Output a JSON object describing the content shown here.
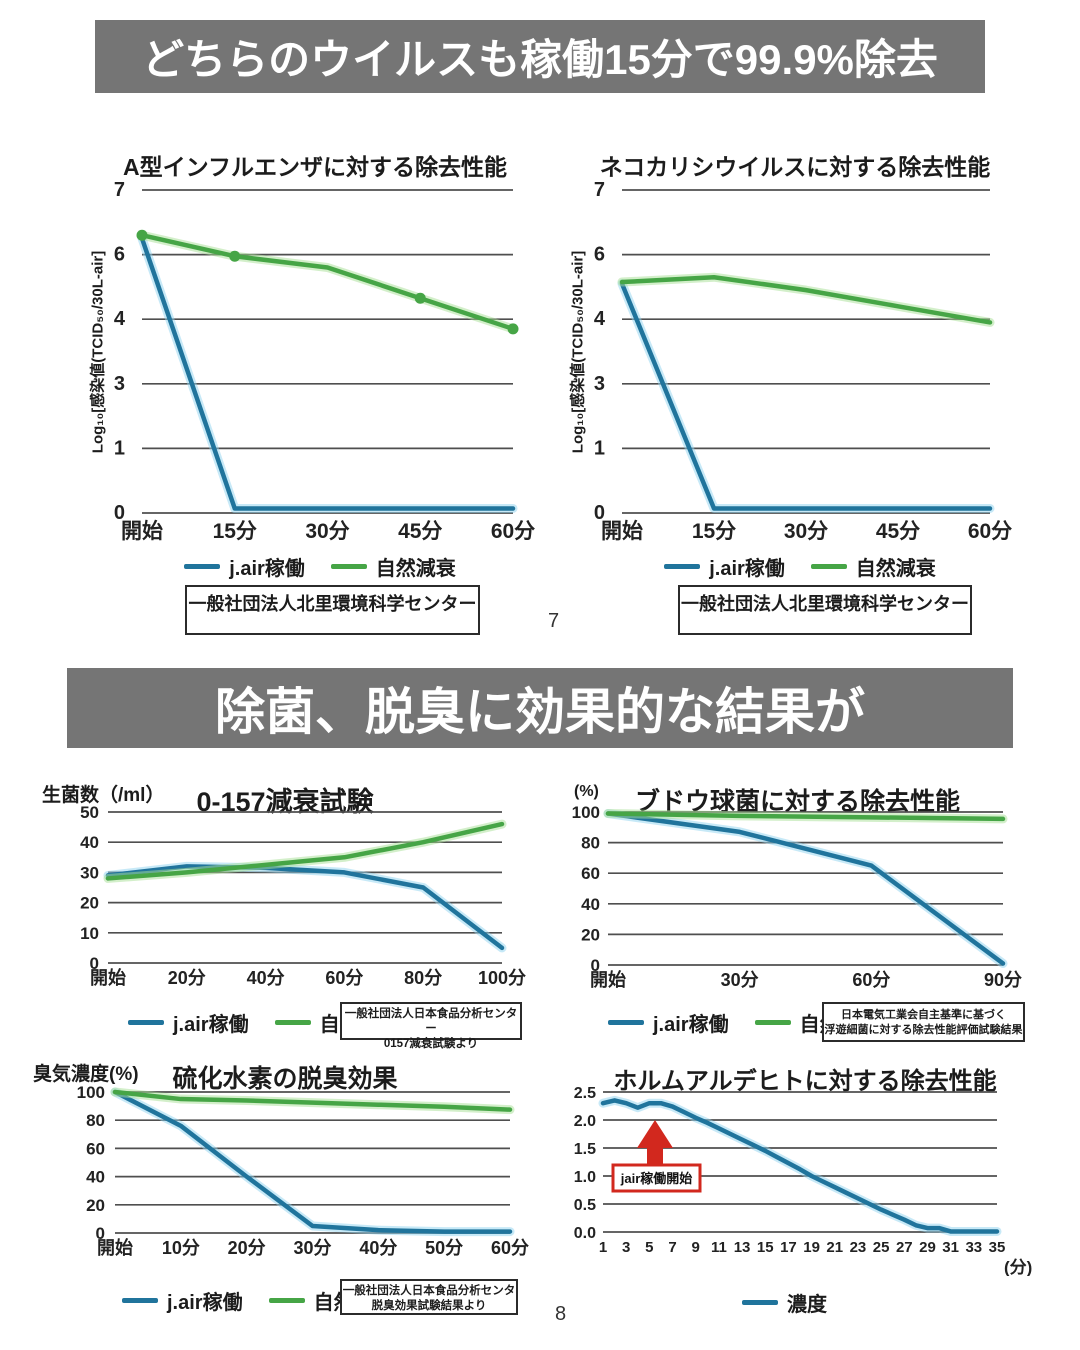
{
  "banners": {
    "top": {
      "text": "どちらのウイルスも稼働15分で99.9%除去",
      "bg": "#757575",
      "color": "#ffffff"
    },
    "middle": {
      "text": "除菌、脱臭に効果的な結果が",
      "bg": "#757575",
      "color": "#ffffff"
    }
  },
  "page_numbers": {
    "first": "7",
    "second": "8"
  },
  "colors": {
    "jair_line": "#20749c",
    "natural_line": "#46a546",
    "annotation_red": "#d2281e",
    "banner_bg": "#757575",
    "grid": "#4f4f4f"
  },
  "chart_data": [
    {
      "id": "influenza-a",
      "type": "line",
      "title": "A型インフルエンザに対する除去性能",
      "ylabel": "Log₁₀[感染値(TCID₅₀/30L-air]",
      "y_ticks": [
        7,
        6,
        4,
        3,
        1,
        0
      ],
      "y_tick_labels": [
        "7",
        "6",
        "4",
        "3",
        "1",
        "0"
      ],
      "categories": [
        "開始",
        "15分",
        "30分",
        "45分",
        "60分"
      ],
      "series": [
        {
          "name": "j.air稼働",
          "color": "jair",
          "values": [
            6.25,
            0.07,
            0.07,
            0.07,
            0.07
          ]
        },
        {
          "name": "自然減衰",
          "color": "natural",
          "values": [
            6.3,
            5.95,
            5.6,
            4.65,
            3.85
          ],
          "marker_points": [
            0,
            1,
            3,
            4
          ]
        }
      ],
      "source": [
        "一般社団法人北里環境科学センター"
      ]
    },
    {
      "id": "feline-calicivirus",
      "type": "line",
      "title": "ネコカリシウイルスに対する除去性能",
      "ylabel": "Log₁₀[感染値(TCID₅₀/30L-air]",
      "y_ticks": [
        7,
        6,
        4,
        3,
        1,
        0
      ],
      "y_tick_labels": [
        "7",
        "6",
        "4",
        "3",
        "1",
        "0"
      ],
      "categories": [
        "開始",
        "15分",
        "30分",
        "45分",
        "60分"
      ],
      "series": [
        {
          "name": "j.air稼働",
          "color": "jair",
          "values": [
            5.1,
            0.07,
            0.07,
            0.07,
            0.07
          ]
        },
        {
          "name": "自然減衰",
          "color": "natural",
          "values": [
            5.15,
            5.3,
            4.9,
            4.4,
            3.95
          ]
        }
      ],
      "source": [
        "一般社団法人北里環境科学センター"
      ]
    },
    {
      "id": "o157-decay-test",
      "type": "line",
      "title": "0-157減衰試験",
      "unit": "生菌数（/ml）",
      "y_ticks": [
        50,
        40,
        30,
        20,
        10,
        0
      ],
      "y_tick_labels": [
        "50",
        "40",
        "30",
        "20",
        "10",
        "0"
      ],
      "categories": [
        "開始",
        "20分",
        "40分",
        "60分",
        "80分",
        "100分"
      ],
      "series": [
        {
          "name": "j.air稼働",
          "color": "jair",
          "values": [
            29,
            32,
            31.5,
            30,
            25,
            5
          ]
        },
        {
          "name": "自然減衰",
          "color": "natural",
          "values": [
            28,
            30,
            32.5,
            35,
            40,
            46
          ]
        }
      ],
      "source": [
        "一般社団法人日本食品分析センター",
        "0157減衰試験より"
      ]
    },
    {
      "id": "staphylococcus",
      "type": "line",
      "title": "ブドウ球菌に対する除去性能",
      "unit": "(%)",
      "y_ticks": [
        100,
        80,
        60,
        40,
        20,
        0
      ],
      "y_tick_labels": [
        "100",
        "80",
        "60",
        "40",
        "20",
        "0"
      ],
      "categories": [
        "開始",
        "30分",
        "60分",
        "90分"
      ],
      "series": [
        {
          "name": "j.air稼働",
          "color": "jair",
          "values": [
            99,
            87,
            65,
            1
          ]
        },
        {
          "name": "自然減衰",
          "color": "natural",
          "values": [
            99,
            97.5,
            96.5,
            95.5
          ]
        }
      ],
      "source": [
        "日本電気工業会自主基準に基づく",
        "浮遊細菌に対する除去性能評価試験結果"
      ]
    },
    {
      "id": "hydrogen-sulfide-deodorization",
      "type": "line",
      "title": "硫化水素の脱臭効果",
      "unit": "臭気濃度(%)",
      "y_ticks": [
        100,
        80,
        60,
        40,
        20,
        0
      ],
      "y_tick_labels": [
        "100",
        "80",
        "60",
        "40",
        "20",
        "0"
      ],
      "categories": [
        "開始",
        "10分",
        "20分",
        "30分",
        "40分",
        "50分",
        "60分"
      ],
      "series": [
        {
          "name": "j.air稼働",
          "color": "jair",
          "values": [
            100,
            76,
            40,
            5,
            2,
            1,
            1
          ]
        },
        {
          "name": "自然減衰",
          "color": "natural",
          "values": [
            100,
            95,
            94,
            92.5,
            91,
            89.5,
            87.5
          ]
        }
      ],
      "source": [
        "一般社団法人日本食品分析センタ",
        "脱臭効果試験結果より"
      ]
    },
    {
      "id": "formaldehyde",
      "type": "line",
      "title": "ホルムアルデヒトに対する除去性能",
      "y_ticks": [
        2.5,
        2.0,
        1.5,
        1.0,
        0.5,
        0.0
      ],
      "y_tick_labels": [
        "2.5",
        "2.0",
        "1.5",
        "1.0",
        "0.5",
        "0.0"
      ],
      "x_values": [
        1,
        2,
        3,
        4,
        5,
        6,
        7,
        8,
        9,
        10,
        11,
        12,
        13,
        14,
        15,
        16,
        17,
        18,
        19,
        20,
        21,
        22,
        23,
        24,
        25,
        26,
        27,
        28,
        29,
        30,
        31,
        32,
        33,
        34,
        35
      ],
      "x_tick_labels": [
        "1",
        "3",
        "5",
        "7",
        "9",
        "11",
        "13",
        "15",
        "17",
        "19",
        "21",
        "23",
        "25",
        "27",
        "29",
        "31",
        "33",
        "35"
      ],
      "x_axis_suffix": "(分)",
      "series": [
        {
          "name": "濃度",
          "color": "jair",
          "values": [
            2.3,
            2.35,
            2.3,
            2.22,
            2.3,
            2.3,
            2.24,
            2.14,
            2.04,
            1.95,
            1.85,
            1.75,
            1.65,
            1.55,
            1.45,
            1.34,
            1.23,
            1.12,
            1.0,
            0.9,
            0.8,
            0.7,
            0.6,
            0.5,
            0.4,
            0.31,
            0.22,
            0.12,
            0.07,
            0.07,
            0.01,
            0.01,
            0.01,
            0.01,
            0.01
          ]
        }
      ],
      "annotation": {
        "label": "jair稼働開始"
      }
    }
  ]
}
